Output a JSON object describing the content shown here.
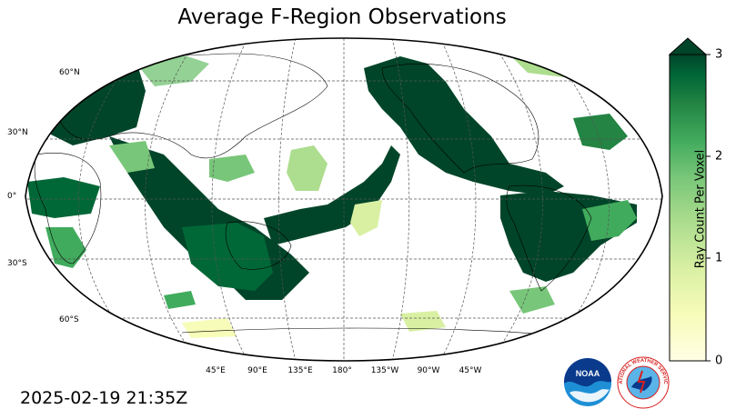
{
  "title": "Average F-Region Observations",
  "timestamp": "2025-02-19 21:35Z",
  "colorbar": {
    "label": "Ray Count Per Voxel",
    "ticks": [
      "0",
      "1",
      "2",
      "3"
    ],
    "min": 0,
    "max": 3,
    "colors": [
      "#ffffe5",
      "#f7fcb9",
      "#d9f0a3",
      "#addd8e",
      "#78c679",
      "#41ab5d",
      "#238443",
      "#006837",
      "#004529"
    ]
  },
  "lat_labels": [
    "60°N",
    "30°N",
    "0°",
    "30°S",
    "60°S"
  ],
  "lon_labels": [
    "45°E",
    "90°E",
    "135°E",
    "180°",
    "135°W",
    "90°W",
    "45°W"
  ],
  "logos": {
    "noaa": "NOAA",
    "nws": "NATIONAL WEATHER SERVICE"
  }
}
